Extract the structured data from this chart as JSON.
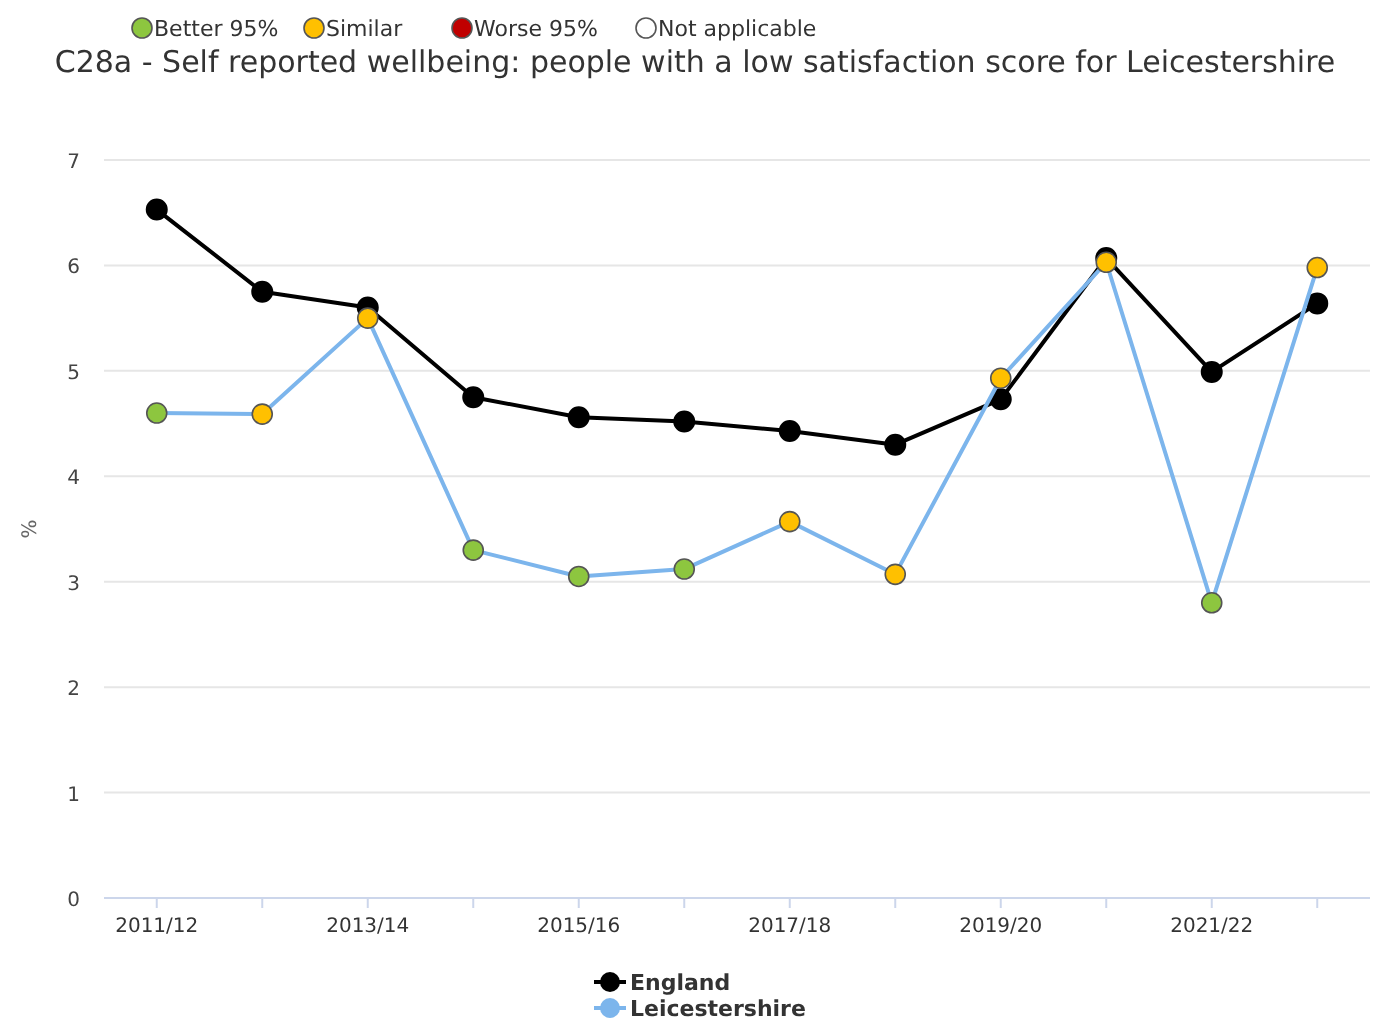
{
  "chart_data": {
    "type": "line",
    "title": "C28a - Self reported wellbeing: people with a low satisfaction score for Leicestershire",
    "ylabel": "%",
    "categories": [
      "2011/12",
      null,
      "2013/14",
      null,
      "2015/16",
      null,
      "2017/18",
      null,
      "2019/20",
      null,
      "2021/22",
      null
    ],
    "series": [
      {
        "name": "England",
        "color": "#000000",
        "values": [
          6.53,
          5.75,
          5.6,
          4.75,
          4.56,
          4.52,
          4.43,
          4.3,
          4.73,
          6.07,
          4.99,
          5.64
        ]
      },
      {
        "name": "Leicestershire",
        "color": "#7cb5ec",
        "colors": [
          "#8dc63f",
          "#ffc000",
          "#ffc000",
          "#8dc63f",
          "#8dc63f",
          "#8dc63f",
          "#ffc000",
          "#ffc000",
          "#ffc000",
          "#ffc000",
          "#8dc63f",
          "#ffc000"
        ],
        "values": [
          4.6,
          4.59,
          5.5,
          3.3,
          3.05,
          3.12,
          3.57,
          3.07,
          4.93,
          6.03,
          2.8,
          5.98
        ]
      }
    ],
    "annotations": [
      "Better 95%",
      "Similar",
      "Worse 95%",
      "Not applicable"
    ],
    "ylim": [
      0,
      7
    ],
    "yticks": [
      0,
      1,
      2,
      3,
      4,
      5,
      6,
      7
    ],
    "grid": "y",
    "legend": "bottom",
    "marker": "circle",
    "line_style": "solid"
  }
}
